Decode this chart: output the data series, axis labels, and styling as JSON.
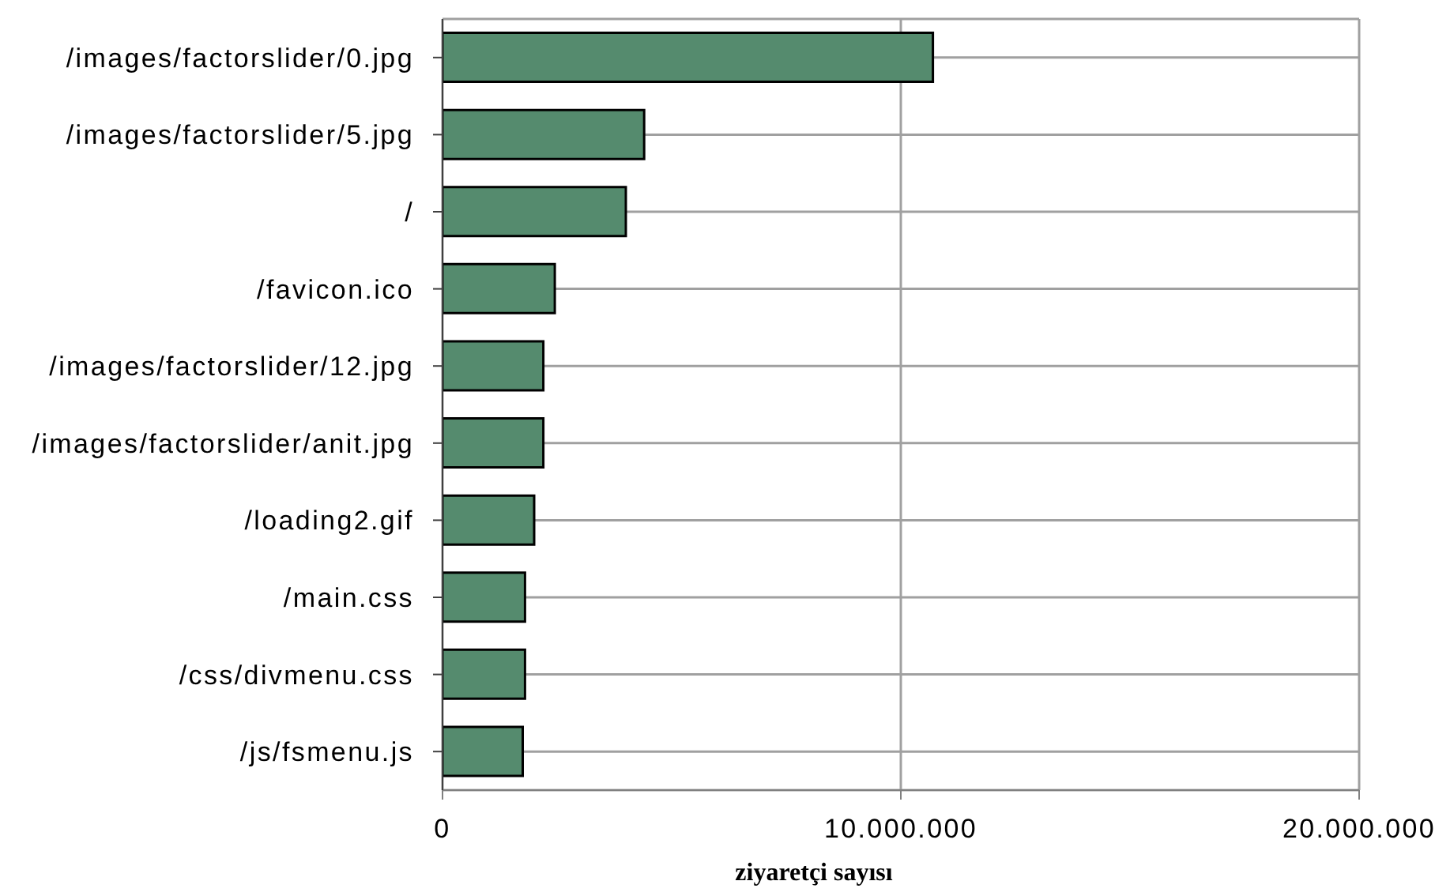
{
  "chart_data": {
    "type": "bar",
    "orientation": "horizontal",
    "xlabel": "ziyaretçi sayısı",
    "categories": [
      "/images/factorslider/0.jpg",
      "/images/factorslider/5.jpg",
      "/",
      "/favicon.ico",
      "/images/factorslider/12.jpg",
      "/images/factorslider/anit.jpg",
      "/loading2.gif",
      "/main.css",
      "/css/divmenu.css",
      "/js/fsmenu.js"
    ],
    "values": [
      10700000,
      4400000,
      4000000,
      2450000,
      2200000,
      2200000,
      2000000,
      1800000,
      1800000,
      1750000
    ],
    "color": "#558b6e",
    "xlim": [
      0,
      20000000
    ],
    "xticks": [
      0,
      {
        "value": 10000000,
        "label": "10.000.000"
      },
      {
        "value": 20000000,
        "label": "20.000.000"
      }
    ],
    "grid": true
  }
}
